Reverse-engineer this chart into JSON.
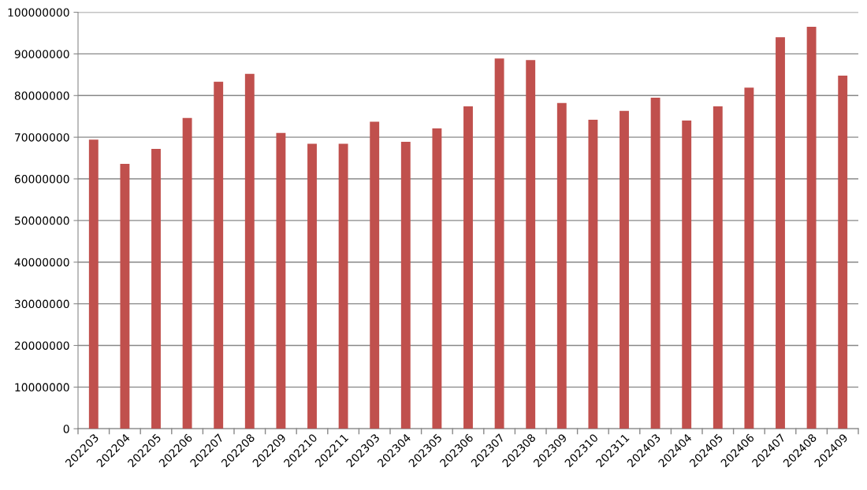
{
  "chart_data": {
    "type": "bar",
    "categories": [
      "202203",
      "202204",
      "202205",
      "202206",
      "202207",
      "202208",
      "202209",
      "202210",
      "202211",
      "202303",
      "202304",
      "202305",
      "202306",
      "202307",
      "202308",
      "202309",
      "202310",
      "202311",
      "202403",
      "202404",
      "202405",
      "202406",
      "202407",
      "202408",
      "202409"
    ],
    "values": [
      69400000,
      63600000,
      67200000,
      74600000,
      83300000,
      85200000,
      71000000,
      68400000,
      68400000,
      73700000,
      68900000,
      72100000,
      77400000,
      88900000,
      88500000,
      78200000,
      74200000,
      76300000,
      79500000,
      74000000,
      77400000,
      81900000,
      94000000,
      96500000,
      84800000
    ],
    "color": "#c0504d",
    "ylim": [
      0,
      100000000
    ],
    "yticks": [
      0,
      10000000,
      20000000,
      30000000,
      40000000,
      50000000,
      60000000,
      70000000,
      80000000,
      90000000,
      100000000
    ],
    "grid": "y",
    "legend": false
  }
}
